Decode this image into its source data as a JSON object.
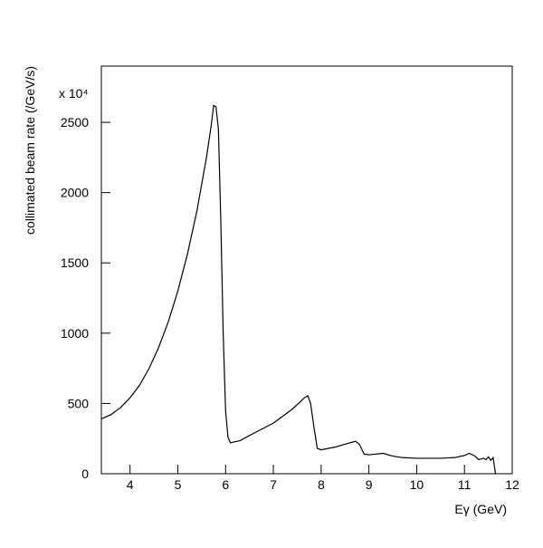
{
  "chart_data": {
    "type": "line",
    "multiplier_label": "x 10⁴",
    "xlabel": "Eγ (GeV)",
    "ylabel": "collimated beam rate (/GeV/s)",
    "x": [
      3.4,
      3.6,
      3.8,
      4.0,
      4.2,
      4.4,
      4.6,
      4.8,
      5.0,
      5.2,
      5.4,
      5.6,
      5.7,
      5.75,
      5.8,
      5.85,
      5.9,
      5.95,
      6.0,
      6.05,
      6.1,
      6.3,
      6.6,
      7.0,
      7.4,
      7.65,
      7.72,
      7.78,
      7.85,
      7.92,
      8.0,
      8.3,
      8.6,
      8.72,
      8.8,
      8.9,
      9.0,
      9.3,
      9.5,
      9.7,
      10.0,
      10.5,
      10.8,
      11.0,
      11.1,
      11.2,
      11.3,
      11.4,
      11.45,
      11.5,
      11.55,
      11.6,
      11.65
    ],
    "series": [
      {
        "color": "#000000",
        "values": [
          390,
          420,
          470,
          540,
          630,
          750,
          900,
          1080,
          1300,
          1560,
          1870,
          2250,
          2480,
          2620,
          2610,
          2450,
          1800,
          1000,
          450,
          260,
          220,
          235,
          290,
          360,
          460,
          540,
          555,
          500,
          330,
          180,
          170,
          190,
          220,
          230,
          210,
          140,
          135,
          145,
          125,
          115,
          110,
          110,
          115,
          130,
          145,
          130,
          100,
          110,
          100,
          120,
          95,
          115,
          0
        ]
      }
    ],
    "xlim": [
      3.4,
      12
    ],
    "ylim": [
      0,
      2900
    ],
    "xticks": [
      4,
      5,
      6,
      7,
      8,
      9,
      10,
      11,
      12
    ],
    "yticks": [
      0,
      500,
      1000,
      1500,
      2000,
      2500
    ]
  }
}
